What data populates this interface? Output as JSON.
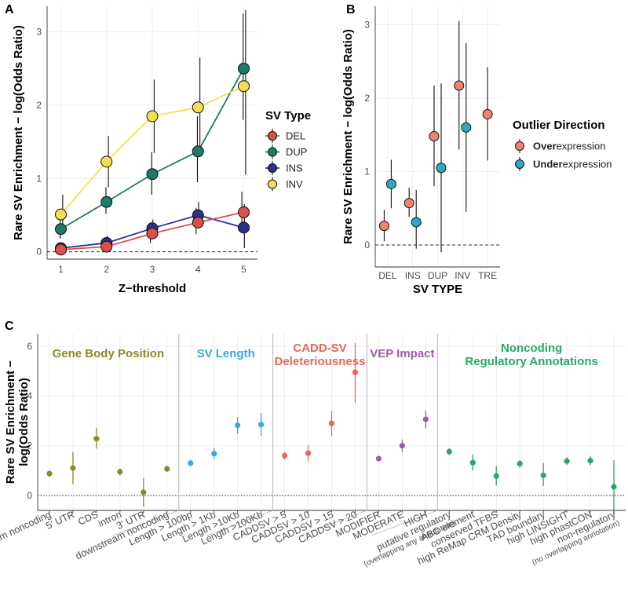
{
  "panel_letters": {
    "a": "A",
    "b": "B",
    "c": "C"
  },
  "chart_data": [
    {
      "type": "line",
      "panel": "A",
      "title": "",
      "xlabel": "Z−threshold",
      "ylabel": "Rare SV Enrichment − log(Odds Ratio)",
      "x": [
        1,
        2,
        3,
        4,
        5
      ],
      "xlim": [
        0.7,
        5.3
      ],
      "ylim": [
        -0.1,
        3.35
      ],
      "yticks": [
        0,
        1,
        2,
        3
      ],
      "legend_title": "SV Type",
      "legend_position": "right",
      "series": [
        {
          "name": "DEL",
          "color": "#d9504b",
          "values": [
            0.03,
            0.07,
            0.25,
            0.4,
            0.54
          ],
          "lower": [
            0.0,
            0.0,
            0.12,
            0.24,
            0.32
          ],
          "upper": [
            0.08,
            0.18,
            0.4,
            0.6,
            0.82
          ]
        },
        {
          "name": "DUP",
          "color": "#1f7a6a",
          "values": [
            0.31,
            0.68,
            1.06,
            1.37,
            2.5
          ],
          "lower": [
            0.18,
            0.52,
            0.78,
            0.95,
            1.8
          ],
          "upper": [
            0.46,
            0.88,
            1.36,
            1.85,
            3.25
          ]
        },
        {
          "name": "INS",
          "color": "#2d2f8a",
          "values": [
            0.05,
            0.12,
            0.32,
            0.5,
            0.33
          ],
          "lower": [
            0.0,
            0.04,
            0.2,
            0.33,
            0.05
          ],
          "upper": [
            0.1,
            0.22,
            0.44,
            0.68,
            0.65
          ]
        },
        {
          "name": "INV",
          "color": "#f2e052",
          "values": [
            0.51,
            1.23,
            1.85,
            1.97,
            2.26
          ],
          "lower": [
            0.28,
            0.88,
            1.35,
            1.45,
            1.05
          ],
          "upper": [
            0.78,
            1.58,
            2.35,
            2.65,
            3.3
          ]
        }
      ]
    },
    {
      "type": "scatter",
      "panel": "B",
      "title": "",
      "xlabel": "SV TYPE",
      "ylabel": "Rare SV Enrichment − log(Odds Ratio)",
      "categories": [
        "DEL",
        "INS",
        "DUP",
        "INV",
        "TRE"
      ],
      "ylim": [
        -0.3,
        3.25
      ],
      "yticks": [
        0,
        1,
        2,
        3
      ],
      "legend_title": "Outlier Direction",
      "legend_position": "right",
      "legend": [
        {
          "bold": "Over",
          "rest": "expression",
          "color": "#f0826e"
        },
        {
          "bold": "Under",
          "rest": "expression",
          "color": "#2ea8bd"
        }
      ],
      "series": [
        {
          "name": "Overexpression",
          "color": "#f0826e",
          "values": [
            0.26,
            0.57,
            1.48,
            2.17,
            1.78
          ],
          "lower": [
            0.05,
            0.38,
            0.8,
            1.3,
            1.15
          ],
          "upper": [
            0.48,
            0.78,
            2.17,
            3.05,
            2.42
          ]
        },
        {
          "name": "Underexpression",
          "color": "#2ea8bd",
          "values": [
            0.83,
            0.31,
            1.05,
            1.6,
            null
          ],
          "lower": [
            0.5,
            -0.05,
            -0.1,
            0.45,
            null
          ],
          "upper": [
            1.16,
            0.75,
            2.2,
            2.75,
            null
          ]
        }
      ]
    },
    {
      "type": "scatter",
      "panel": "C",
      "title": "",
      "xlabel": "",
      "ylabel": "Rare SV Enrichment − log(Odds Ratio)",
      "ylim": [
        -0.6,
        6.5
      ],
      "yticks": [
        0,
        2,
        4,
        6
      ],
      "groups": [
        {
          "title": "Gene Body Position",
          "color": "#8a8a2a",
          "categories": [
            "upstream noncoding",
            "5' UTR",
            "CDS",
            "intron",
            "3' UTR",
            "downstream noncoding"
          ],
          "values": [
            0.88,
            1.1,
            2.28,
            0.95,
            0.13,
            1.07
          ],
          "lower": [
            0.75,
            0.45,
            1.88,
            0.8,
            -0.45,
            0.95
          ],
          "upper": [
            1.0,
            1.75,
            2.72,
            1.08,
            0.7,
            1.2
          ]
        },
        {
          "title": "SV Length",
          "color": "#3aa6dd",
          "categories": [
            "Length > 100bp",
            "Length > 1Kb",
            "Length >10Kb",
            "Length >100Kb"
          ],
          "values": [
            1.3,
            1.68,
            2.82,
            2.85
          ],
          "lower": [
            1.18,
            1.45,
            2.48,
            2.4
          ],
          "upper": [
            1.42,
            1.92,
            3.15,
            3.32
          ]
        },
        {
          "title": "CADD-SV\nDeleteriousness",
          "color": "#e8675c",
          "categories": [
            "CADDSV > 5",
            "CADDSV > 10",
            "CADDSV > 15",
            "CADDSV > 20"
          ],
          "values": [
            1.6,
            1.7,
            2.9,
            4.95
          ],
          "lower": [
            1.45,
            1.38,
            2.38,
            3.72
          ],
          "upper": [
            1.74,
            2.02,
            3.4,
            6.12
          ]
        },
        {
          "title": "VEP Impact",
          "color": "#9c5da8",
          "categories": [
            "MODIFIER",
            "MODERATE",
            "HIGH"
          ],
          "values": [
            1.48,
            2.0,
            3.06
          ],
          "lower": [
            1.38,
            1.75,
            2.7
          ],
          "upper": [
            1.58,
            2.25,
            3.42
          ]
        },
        {
          "title": "Noncoding\nRegulatory Annotations",
          "color": "#2aa767",
          "categories": [
            "putative regulatory",
            "ABC element",
            "conserved TFBS",
            "high ReMap CRM Density",
            "TAD boundary",
            "high LINSIGHT",
            "high phastCON",
            "non-regulatory"
          ],
          "sublabels": [
            "(overlapping any annotation)",
            "",
            "",
            "",
            "",
            "",
            "",
            "(no overlapping annotation)"
          ],
          "values": [
            1.76,
            1.32,
            0.78,
            1.28,
            0.81,
            1.38,
            1.4,
            0.35
          ],
          "lower": [
            1.62,
            1.0,
            0.4,
            1.12,
            0.38,
            1.22,
            1.22,
            -0.78
          ],
          "upper": [
            1.9,
            1.65,
            1.18,
            1.42,
            1.3,
            1.54,
            1.58,
            1.42
          ]
        }
      ]
    }
  ]
}
